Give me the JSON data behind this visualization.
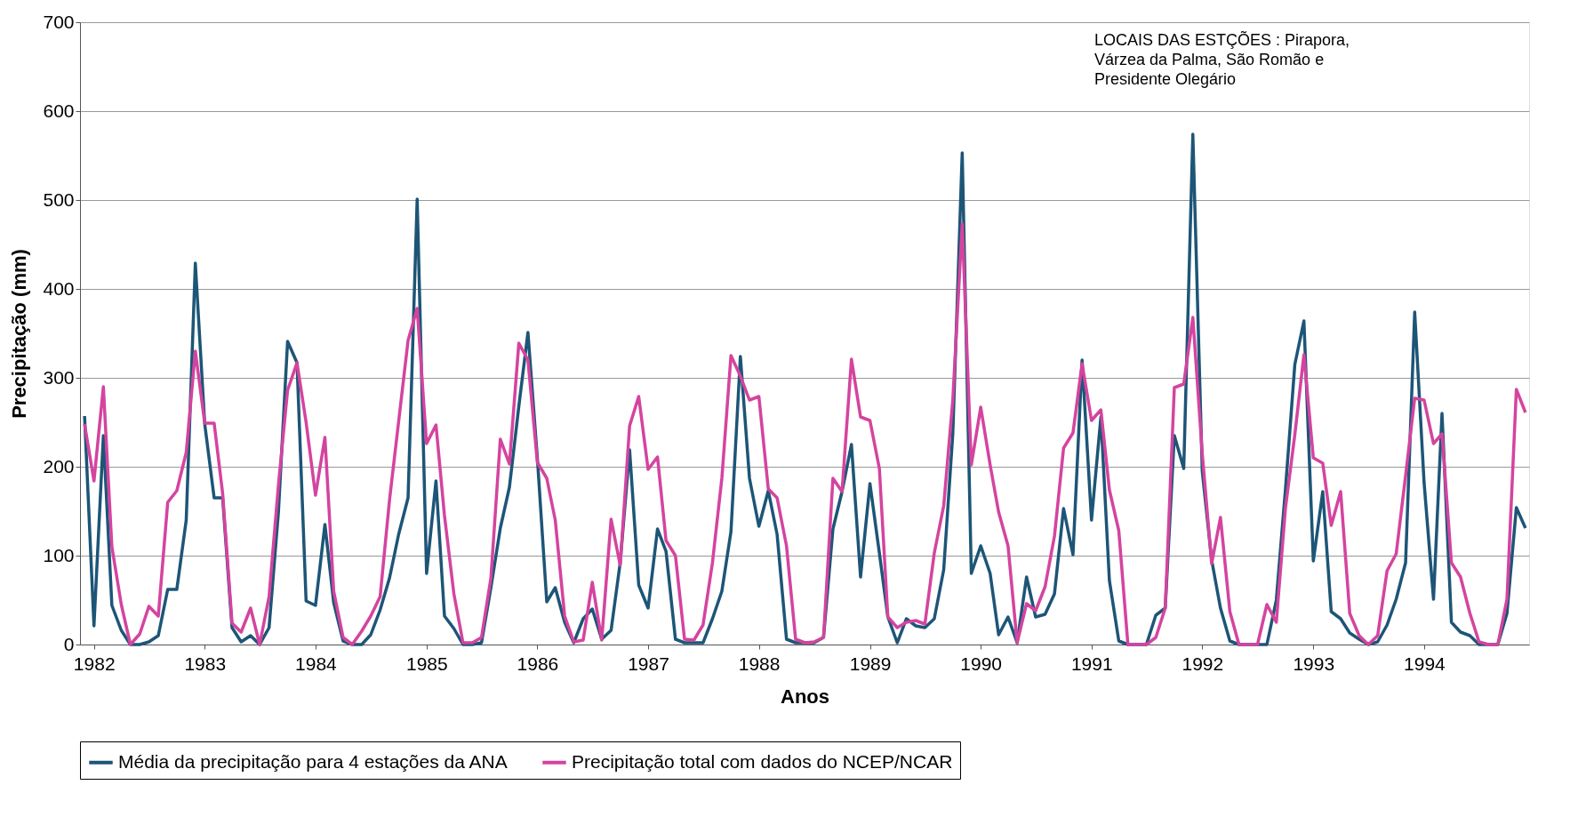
{
  "chart_data": {
    "type": "line",
    "xlabel": "Anos",
    "ylabel": "Precipitação (mm)",
    "annotations": [
      "LOCAIS DAS ESTÇÕES : Pirapora,\n Várzea da Palma, São Romão e\n Presidente Olegário"
    ],
    "x": [
      "1981-12",
      "1982-01",
      "1982-02",
      "1982-03",
      "1982-04",
      "1982-05",
      "1982-06",
      "1982-07",
      "1982-08",
      "1982-09",
      "1982-10",
      "1982-11",
      "1982-12",
      "1983-01",
      "1983-02",
      "1983-03",
      "1983-04",
      "1983-05",
      "1983-06",
      "1983-07",
      "1983-08",
      "1983-09",
      "1983-10",
      "1983-11",
      "1983-12",
      "1984-01",
      "1984-02",
      "1984-03",
      "1984-04",
      "1984-05",
      "1984-06",
      "1984-07",
      "1984-08",
      "1984-09",
      "1984-10",
      "1984-11",
      "1984-12",
      "1985-01",
      "1985-02",
      "1985-03",
      "1985-04",
      "1985-05",
      "1985-06",
      "1985-07",
      "1985-08",
      "1985-09",
      "1985-10",
      "1985-11",
      "1985-12",
      "1986-01",
      "1986-02",
      "1986-03",
      "1986-04",
      "1986-05",
      "1986-06",
      "1986-07",
      "1986-08",
      "1986-09",
      "1986-10",
      "1986-11",
      "1986-12",
      "1987-01",
      "1987-02",
      "1987-03",
      "1987-04",
      "1987-05",
      "1987-06",
      "1987-07",
      "1987-08",
      "1987-09",
      "1987-10",
      "1987-11",
      "1987-12",
      "1988-01",
      "1988-02",
      "1988-03",
      "1988-04",
      "1988-05",
      "1988-06",
      "1988-07",
      "1988-08",
      "1988-09",
      "1988-10",
      "1988-11",
      "1988-12",
      "1989-01",
      "1989-02",
      "1989-03",
      "1989-04",
      "1989-05",
      "1989-06",
      "1989-07",
      "1989-08",
      "1989-09",
      "1989-10",
      "1989-11",
      "1989-12",
      "1990-01",
      "1990-02",
      "1990-03",
      "1990-04",
      "1990-05",
      "1990-06",
      "1990-07",
      "1990-08",
      "1990-09",
      "1990-10",
      "1990-11",
      "1990-12",
      "1991-01",
      "1991-02",
      "1991-03",
      "1991-04",
      "1991-05",
      "1991-06",
      "1991-07",
      "1991-08",
      "1991-09",
      "1991-10",
      "1991-11",
      "1991-12",
      "1992-01",
      "1992-02",
      "1992-03",
      "1992-04",
      "1992-05",
      "1992-06",
      "1992-07",
      "1992-08",
      "1992-09",
      "1992-10",
      "1992-11",
      "1992-12",
      "1993-01",
      "1993-02",
      "1993-03",
      "1993-04",
      "1993-05",
      "1993-06",
      "1993-07",
      "1993-08",
      "1993-09",
      "1993-10",
      "1993-11",
      "1993-12",
      "1994-01",
      "1994-02",
      "1994-03",
      "1994-04",
      "1994-05",
      "1994-06",
      "1994-07",
      "1994-08",
      "1994-09",
      "1994-10",
      "1994-11",
      "1994-12"
    ],
    "series": [
      {
        "name": "Média da precipitação para 4 estações da ANA",
        "color": "#1d5577",
        "values": [
          257,
          21,
          235,
          44,
          16,
          0,
          0,
          3,
          10,
          62,
          62,
          140,
          429,
          248,
          165,
          165,
          19,
          3,
          10,
          0,
          19,
          150,
          341,
          317,
          49,
          44,
          135,
          47,
          4,
          0,
          0,
          11,
          39,
          75,
          124,
          165,
          501,
          80,
          184,
          32,
          18,
          0,
          0,
          2,
          64,
          131,
          177,
          268,
          351,
          210,
          48,
          64,
          25,
          2,
          29,
          40,
          6,
          16,
          92,
          219,
          67,
          41,
          130,
          105,
          6,
          2,
          2,
          2,
          29,
          60,
          127,
          324,
          187,
          133,
          173,
          124,
          6,
          2,
          2,
          2,
          8,
          130,
          172,
          225,
          76,
          181,
          103,
          31,
          2,
          29,
          21,
          19,
          29,
          84,
          237,
          553,
          80,
          111,
          80,
          11,
          31,
          2,
          76,
          31,
          34,
          57,
          153,
          101,
          320,
          140,
          256,
          72,
          4,
          0,
          0,
          0,
          33,
          41,
          235,
          198,
          574,
          195,
          95,
          41,
          4,
          0,
          0,
          0,
          0,
          50,
          174,
          315,
          364,
          94,
          172,
          37,
          29,
          13,
          6,
          0,
          3,
          22,
          51,
          92,
          374,
          182,
          51,
          260,
          25,
          14,
          10,
          0,
          0,
          0,
          35,
          154,
          131
        ]
      },
      {
        "name": "Precipitação total com dados do NCEP/NCAR",
        "color": "#d4449f",
        "values": [
          248,
          184,
          290,
          110,
          45,
          0,
          12,
          43,
          32,
          160,
          173,
          216,
          330,
          249,
          249,
          170,
          24,
          14,
          41,
          0,
          54,
          180,
          286,
          317,
          250,
          168,
          233,
          60,
          8,
          0,
          15,
          32,
          54,
          163,
          251,
          342,
          378,
          226,
          247,
          145,
          57,
          2,
          2,
          8,
          75,
          231,
          203,
          339,
          320,
          205,
          187,
          140,
          32,
          3,
          5,
          70,
          5,
          141,
          89,
          246,
          279,
          197,
          211,
          117,
          100,
          6,
          5,
          22,
          92,
          187,
          325,
          302,
          275,
          279,
          175,
          165,
          111,
          6,
          2,
          3,
          8,
          187,
          172,
          321,
          256,
          252,
          198,
          31,
          19,
          25,
          27,
          23,
          103,
          156,
          275,
          473,
          202,
          267,
          202,
          149,
          111,
          2,
          46,
          38,
          65,
          122,
          221,
          238,
          316,
          252,
          264,
          174,
          128,
          0,
          0,
          0,
          8,
          41,
          289,
          293,
          368,
          215,
          91,
          143,
          37,
          0,
          0,
          0,
          45,
          25,
          153,
          236,
          326,
          210,
          204,
          134,
          172,
          35,
          10,
          0,
          10,
          83,
          102,
          190,
          277,
          275,
          226,
          237,
          92,
          76,
          35,
          3,
          0,
          0,
          51,
          287,
          261
        ]
      }
    ],
    "xlim": [
      "1981-11-16",
      "1994-12-13"
    ],
    "xticks": [
      "1982",
      "1983",
      "1984",
      "1985",
      "1986",
      "1987",
      "1988",
      "1989",
      "1990",
      "1991",
      "1992",
      "1993",
      "1994"
    ],
    "ylim": [
      0,
      700
    ],
    "yticks": [
      0,
      100,
      200,
      300,
      400,
      500,
      600,
      700
    ],
    "grid": "y",
    "legend": "bottom",
    "marker": "none",
    "line_style": "solid"
  }
}
